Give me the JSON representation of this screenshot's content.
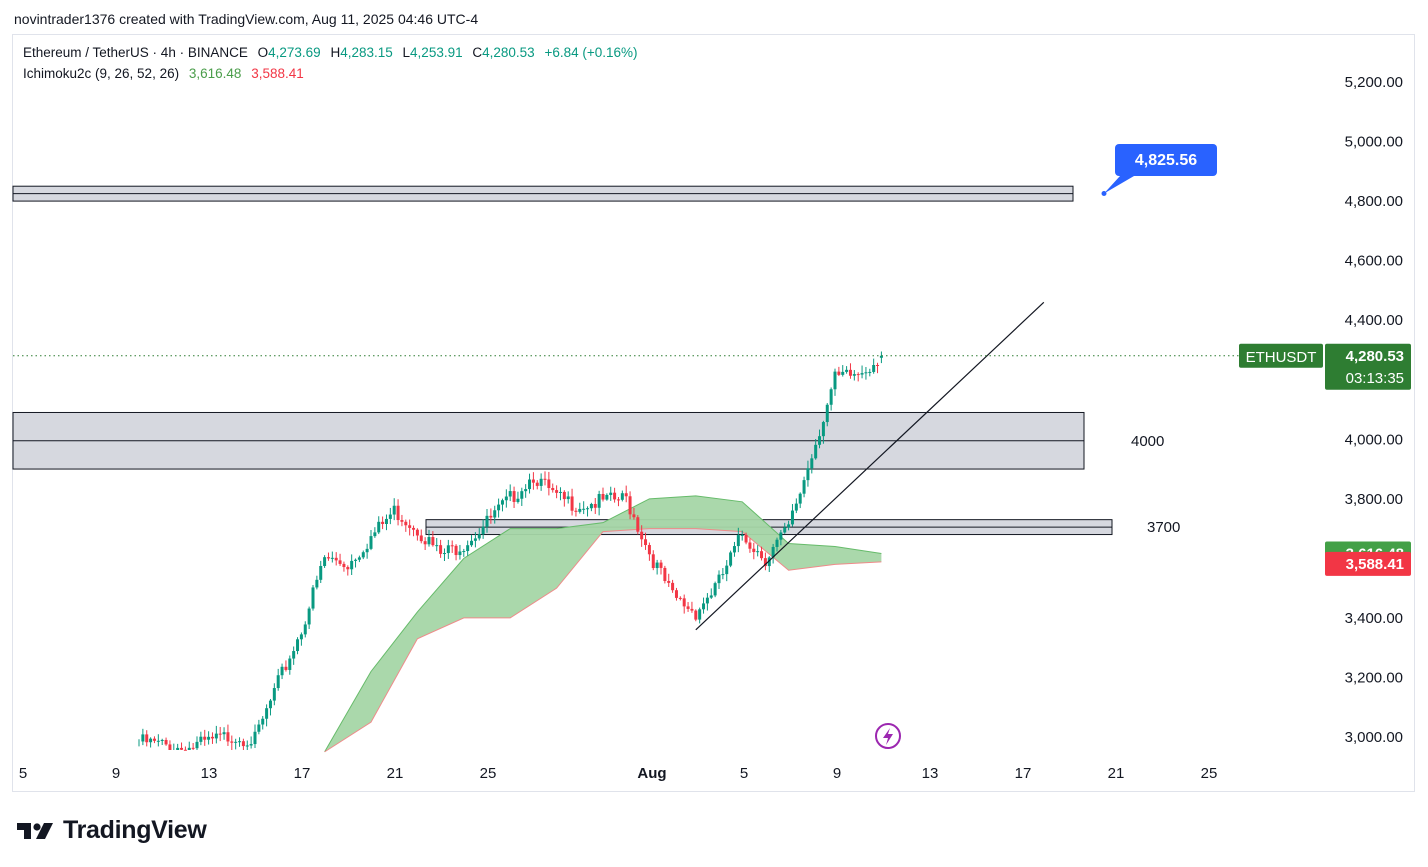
{
  "caption": "novintrader1376 created with TradingView.com, Aug 11, 2025 04:46 UTC-4",
  "legend": {
    "symbol": "Ethereum / TetherUS · 4h · BINANCE",
    "o_label": "O",
    "o_value": "4,273.69",
    "h_label": "H",
    "h_value": "4,283.15",
    "l_label": "L",
    "l_value": "4,253.91",
    "c_label": "C",
    "c_value": "4,280.53",
    "change": "+6.84 (+0.16%)",
    "indicator": "Ichimoku2c (9, 26, 52, 26)",
    "ind_value1": "3,616.48",
    "ind_value2": "3,588.41"
  },
  "price_tags": {
    "symbol_tag": "ETHUSDT",
    "last_price": "4,280.53",
    "countdown": "03:13:35",
    "span_a": "3,616.48",
    "span_b": "3,588.41"
  },
  "annotations": {
    "target_callout": "4,825.56",
    "zone_4000_label": "4000",
    "zone_3700_label": "3700"
  },
  "brand": {
    "name": "TradingView"
  },
  "icons": {
    "logo": "tradingview-logo-icon",
    "alert": "lightning-icon"
  },
  "colors": {
    "up": "#089981",
    "down": "#f23645",
    "cloud": "#a5d6a7",
    "cloud_edge": "#ef8a8a",
    "price_tag": "#2e7d32",
    "callout": "#2962ff",
    "zone": "#d1d4dc"
  },
  "chart_data": {
    "type": "candlestick",
    "symbol": "ETHUSDT",
    "timeframe": "4h",
    "x_tick_labels": [
      "5",
      "9",
      "13",
      "17",
      "21",
      "25",
      "Aug",
      "5",
      "9",
      "13",
      "17",
      "21",
      "25"
    ],
    "y_tick_labels": [
      "5,200.00",
      "5,000.00",
      "4,800.00",
      "4,600.00",
      "4,400.00",
      "4,000.00",
      "3,800.00",
      "3,400.00",
      "3,200.00",
      "3,000.00"
    ],
    "y_ticks": [
      5200,
      5000,
      4800,
      4600,
      4400,
      4000,
      3800,
      3400,
      3200,
      3000
    ],
    "ylim": [
      2950,
      5300
    ],
    "close_path": [
      [
        "Jul 10",
        2985
      ],
      [
        "Jul 12",
        2960
      ],
      [
        "Jul 14",
        3005
      ],
      [
        "Jul 15",
        2990
      ],
      [
        "Jul 16",
        3180
      ],
      [
        "Jul 17",
        3360
      ],
      [
        "Jul 18",
        3600
      ],
      [
        "Jul 19",
        3580
      ],
      [
        "Jul 21",
        3760
      ],
      [
        "Jul 22",
        3700
      ],
      [
        "Jul 23",
        3610
      ],
      [
        "Jul 24",
        3650
      ],
      [
        "Jul 25",
        3720
      ],
      [
        "Jul 27",
        3880
      ],
      [
        "Jul 28",
        3800
      ],
      [
        "Jul 29",
        3780
      ],
      [
        "Jul 31",
        3800
      ],
      [
        "Aug 1",
        3620
      ],
      [
        "Aug 2",
        3470
      ],
      [
        "Aug 3",
        3420
      ],
      [
        "Aug 4",
        3520
      ],
      [
        "Aug 5",
        3680
      ],
      [
        "Aug 6",
        3600
      ],
      [
        "Aug 7",
        3700
      ],
      [
        "Aug 8",
        3950
      ],
      [
        "Aug 9",
        4200
      ],
      [
        "Aug 10",
        4220
      ],
      [
        "Aug 11",
        4280.53
      ]
    ],
    "last": {
      "open": 4273.69,
      "high": 4283.15,
      "low": 4253.91,
      "close": 4280.53,
      "change": 6.84,
      "change_pct": 0.16
    },
    "ichimoku_cloud": {
      "span_a": 3616.48,
      "span_b": 3588.41,
      "upper": [
        [
          "Jul 18",
          2950
        ],
        [
          "Jul 20",
          3220
        ],
        [
          "Jul 22",
          3420
        ],
        [
          "Jul 24",
          3600
        ],
        [
          "Jul 26",
          3700
        ],
        [
          "Jul 28",
          3700
        ],
        [
          "Jul 30",
          3720
        ],
        [
          "Aug 1",
          3800
        ],
        [
          "Aug 3",
          3810
        ],
        [
          "Aug 5",
          3790
        ],
        [
          "Aug 7",
          3650
        ],
        [
          "Aug 9",
          3640
        ],
        [
          "Aug 11",
          3616.48
        ]
      ],
      "lower": [
        [
          "Jul 18",
          2950
        ],
        [
          "Jul 20",
          3050
        ],
        [
          "Jul 22",
          3330
        ],
        [
          "Jul 24",
          3400
        ],
        [
          "Jul 26",
          3400
        ],
        [
          "Jul 28",
          3500
        ],
        [
          "Jul 30",
          3690
        ],
        [
          "Aug 1",
          3700
        ],
        [
          "Aug 3",
          3700
        ],
        [
          "Aug 5",
          3690
        ],
        [
          "Aug 7",
          3560
        ],
        [
          "Aug 9",
          3580
        ],
        [
          "Aug 11",
          3588.41
        ]
      ]
    },
    "zones": [
      {
        "label": "",
        "low": 4800,
        "high": 4850
      },
      {
        "label": "4000",
        "low": 3900,
        "high": 4090
      },
      {
        "label": "3700",
        "low": 3680,
        "high": 3730
      }
    ],
    "trendline": {
      "start": [
        "Aug 3",
        3360
      ],
      "end": [
        "Aug 18",
        4460
      ]
    },
    "target": 4825.56
  }
}
